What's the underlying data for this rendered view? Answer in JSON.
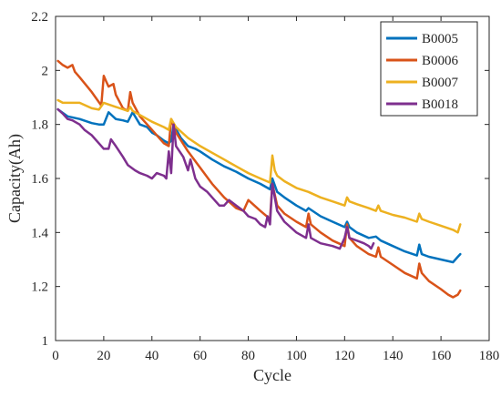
{
  "chart_data": {
    "type": "line",
    "title": "",
    "xlabel": "Cycle",
    "ylabel": "Capacity(Ah)",
    "xlim": [
      0,
      180
    ],
    "ylim": [
      1,
      2.2
    ],
    "xticks": [
      0,
      20,
      40,
      60,
      80,
      100,
      120,
      140,
      160,
      180
    ],
    "yticks": [
      1,
      1.2,
      1.4,
      1.6,
      1.8,
      2,
      2.2
    ],
    "xtick_labels": [
      "0",
      "20",
      "40",
      "60",
      "80",
      "100",
      "120",
      "140",
      "160",
      "180"
    ],
    "ytick_labels": [
      "1",
      "1.2",
      "1.4",
      "1.6",
      "1.8",
      "2",
      "2.2"
    ],
    "grid": false,
    "legend_position": "top-right",
    "series": [
      {
        "name": "B0005",
        "color": "#0072BD",
        "x": [
          1,
          5,
          10,
          15,
          18,
          20,
          22,
          25,
          28,
          30,
          32,
          35,
          38,
          40,
          42,
          45,
          47,
          48,
          49,
          52,
          55,
          58,
          60,
          65,
          70,
          75,
          80,
          85,
          89,
          90,
          92,
          95,
          100,
          104,
          105,
          110,
          115,
          120,
          121,
          122,
          125,
          130,
          133,
          135,
          140,
          145,
          150,
          151,
          152,
          155,
          160,
          165,
          167,
          168
        ],
        "y": [
          1.856,
          1.83,
          1.82,
          1.805,
          1.8,
          1.8,
          1.845,
          1.82,
          1.815,
          1.81,
          1.845,
          1.8,
          1.79,
          1.77,
          1.76,
          1.74,
          1.73,
          1.74,
          1.8,
          1.75,
          1.72,
          1.71,
          1.7,
          1.67,
          1.645,
          1.625,
          1.6,
          1.58,
          1.56,
          1.6,
          1.55,
          1.53,
          1.5,
          1.48,
          1.49,
          1.46,
          1.44,
          1.42,
          1.44,
          1.42,
          1.4,
          1.38,
          1.385,
          1.37,
          1.35,
          1.33,
          1.315,
          1.355,
          1.32,
          1.31,
          1.3,
          1.29,
          1.31,
          1.32
        ]
      },
      {
        "name": "B0006",
        "color": "#D95319",
        "x": [
          1,
          3,
          5,
          7,
          8,
          10,
          15,
          19,
          20,
          21,
          22,
          24,
          25,
          28,
          30,
          31,
          32,
          35,
          40,
          45,
          47,
          48,
          50,
          55,
          60,
          65,
          70,
          75,
          78,
          80,
          85,
          89,
          90,
          92,
          95,
          100,
          104,
          105,
          106,
          110,
          115,
          120,
          121,
          122,
          125,
          130,
          133,
          134,
          135,
          140,
          145,
          150,
          151,
          152,
          155,
          160,
          163,
          165,
          167,
          168
        ],
        "y": [
          2.035,
          2.02,
          2.01,
          2.02,
          1.995,
          1.975,
          1.92,
          1.87,
          1.98,
          1.96,
          1.94,
          1.95,
          1.91,
          1.86,
          1.85,
          1.92,
          1.88,
          1.83,
          1.78,
          1.73,
          1.72,
          1.82,
          1.77,
          1.7,
          1.64,
          1.58,
          1.53,
          1.49,
          1.48,
          1.52,
          1.48,
          1.45,
          1.58,
          1.5,
          1.47,
          1.44,
          1.42,
          1.47,
          1.43,
          1.4,
          1.37,
          1.35,
          1.43,
          1.38,
          1.35,
          1.32,
          1.31,
          1.345,
          1.31,
          1.28,
          1.25,
          1.23,
          1.285,
          1.25,
          1.22,
          1.19,
          1.17,
          1.16,
          1.17,
          1.185
        ]
      },
      {
        "name": "B0007",
        "color": "#EDB120",
        "x": [
          1,
          3,
          5,
          10,
          15,
          18,
          20,
          25,
          30,
          31,
          32,
          35,
          40,
          45,
          47,
          48,
          50,
          55,
          60,
          65,
          70,
          75,
          80,
          85,
          89,
          90,
          91,
          92,
          95,
          100,
          105,
          110,
          115,
          120,
          121,
          122,
          125,
          130,
          133,
          134,
          135,
          140,
          145,
          150,
          151,
          152,
          155,
          160,
          165,
          167,
          168
        ],
        "y": [
          1.89,
          1.88,
          1.88,
          1.88,
          1.86,
          1.855,
          1.88,
          1.865,
          1.85,
          1.865,
          1.85,
          1.835,
          1.81,
          1.79,
          1.78,
          1.82,
          1.79,
          1.75,
          1.72,
          1.695,
          1.67,
          1.645,
          1.62,
          1.6,
          1.585,
          1.685,
          1.63,
          1.61,
          1.59,
          1.565,
          1.55,
          1.53,
          1.515,
          1.5,
          1.53,
          1.515,
          1.505,
          1.49,
          1.48,
          1.5,
          1.48,
          1.465,
          1.455,
          1.44,
          1.47,
          1.45,
          1.44,
          1.425,
          1.41,
          1.4,
          1.43
        ]
      },
      {
        "name": "B0018",
        "color": "#7E2F8E",
        "x": [
          1,
          3,
          5,
          7,
          10,
          12,
          15,
          18,
          20,
          22,
          23,
          25,
          28,
          30,
          33,
          35,
          38,
          40,
          42,
          45,
          46,
          47,
          48,
          49,
          50,
          53,
          55,
          56,
          58,
          60,
          63,
          65,
          68,
          70,
          72,
          75,
          78,
          80,
          83,
          85,
          87,
          88,
          89,
          90,
          92,
          95,
          100,
          104,
          105,
          106,
          110,
          115,
          118,
          120,
          121,
          122,
          125,
          128,
          130,
          131,
          132
        ],
        "y": [
          1.856,
          1.84,
          1.82,
          1.815,
          1.8,
          1.78,
          1.76,
          1.73,
          1.71,
          1.71,
          1.745,
          1.72,
          1.68,
          1.65,
          1.63,
          1.62,
          1.61,
          1.6,
          1.62,
          1.61,
          1.6,
          1.7,
          1.62,
          1.8,
          1.72,
          1.68,
          1.63,
          1.67,
          1.6,
          1.57,
          1.55,
          1.53,
          1.5,
          1.5,
          1.52,
          1.5,
          1.48,
          1.46,
          1.45,
          1.43,
          1.42,
          1.46,
          1.43,
          1.58,
          1.48,
          1.44,
          1.4,
          1.38,
          1.43,
          1.38,
          1.36,
          1.35,
          1.34,
          1.38,
          1.42,
          1.38,
          1.37,
          1.36,
          1.35,
          1.34,
          1.36
        ]
      }
    ]
  }
}
